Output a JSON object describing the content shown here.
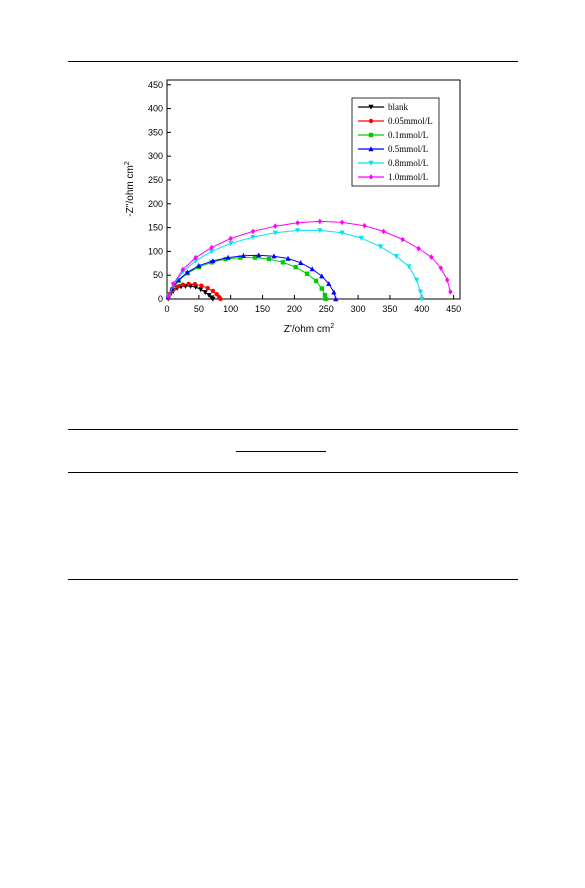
{
  "chart_data": {
    "type": "line",
    "xlabel": "Z'/ohm cm",
    "xlabel_sup": "2",
    "ylabel": "-Z''/ohm cm",
    "ylabel_sup": "2",
    "xlim": [
      0,
      460
    ],
    "ylim": [
      0,
      460
    ],
    "xticks": [
      0,
      50,
      100,
      150,
      200,
      250,
      300,
      350,
      400,
      450
    ],
    "yticks": [
      0,
      50,
      100,
      150,
      200,
      250,
      300,
      350,
      400,
      450
    ],
    "grid": false,
    "legend_position": "top-right",
    "series": [
      {
        "name": "blank",
        "color": "#000000",
        "marker": "triangle-down",
        "x": [
          2,
          5,
          10,
          16,
          22,
          29,
          37,
          45,
          53,
          60,
          66,
          70,
          72
        ],
        "y": [
          1,
          9,
          17,
          23,
          26,
          27,
          27,
          25,
          20,
          14,
          8,
          3,
          0
        ]
      },
      {
        "name": "0.05mmol/L",
        "color": "#ff0000",
        "marker": "circle",
        "x": [
          2,
          5,
          10,
          17,
          25,
          34,
          44,
          54,
          64,
          72,
          78,
          82,
          84
        ],
        "y": [
          2,
          11,
          20,
          26,
          30,
          32,
          31,
          28,
          23,
          17,
          10,
          4,
          0
        ]
      },
      {
        "name": "0.1mmol/L",
        "color": "#00cc00",
        "marker": "square",
        "x": [
          2,
          8,
          18,
          32,
          50,
          70,
          92,
          115,
          138,
          160,
          182,
          202,
          220,
          234,
          243,
          248,
          249
        ],
        "y": [
          4,
          20,
          38,
          54,
          67,
          77,
          84,
          87,
          87,
          84,
          77,
          67,
          53,
          38,
          22,
          8,
          0
        ]
      },
      {
        "name": "0.5mmol/L",
        "color": "#0000ff",
        "marker": "triangle-up",
        "x": [
          2,
          8,
          18,
          32,
          50,
          72,
          96,
          120,
          144,
          168,
          190,
          210,
          228,
          243,
          254,
          262,
          265
        ],
        "y": [
          4,
          22,
          40,
          56,
          70,
          80,
          87,
          91,
          92,
          90,
          85,
          76,
          63,
          48,
          32,
          14,
          0
        ]
      },
      {
        "name": "0.8mmol/L",
        "color": "#00e5ee",
        "marker": "triangle-down",
        "x": [
          2,
          10,
          25,
          45,
          70,
          100,
          135,
          170,
          205,
          240,
          275,
          305,
          335,
          360,
          380,
          392,
          398,
          400
        ],
        "y": [
          5,
          30,
          57,
          80,
          100,
          117,
          130,
          139,
          144,
          144,
          139,
          128,
          110,
          90,
          68,
          40,
          15,
          0
        ]
      },
      {
        "name": "1.0mmol/L",
        "color": "#ff00ff",
        "marker": "diamond",
        "x": [
          2,
          10,
          25,
          45,
          70,
          100,
          135,
          170,
          205,
          240,
          275,
          310,
          340,
          370,
          395,
          415,
          430,
          440,
          445
        ],
        "y": [
          5,
          32,
          62,
          87,
          108,
          127,
          142,
          153,
          160,
          163,
          161,
          154,
          142,
          125,
          106,
          88,
          65,
          40,
          15
        ]
      }
    ]
  }
}
